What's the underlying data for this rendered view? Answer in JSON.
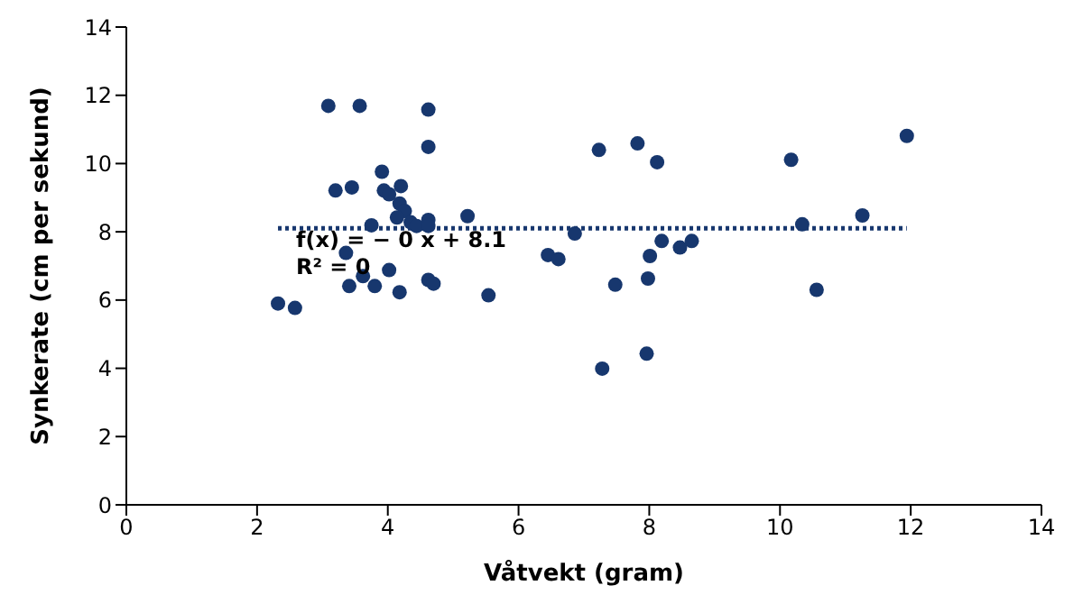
{
  "chart_data": {
    "type": "scatter",
    "xlabel": "Våtvekt (gram)",
    "ylabel": "Synkerate (cm per sekund)",
    "xlim": [
      0,
      14
    ],
    "xticks": [
      0,
      2,
      4,
      6,
      8,
      10,
      12,
      14
    ],
    "ylim": [
      0,
      14
    ],
    "yticks": [
      0,
      2,
      4,
      6,
      8,
      10,
      12,
      14
    ],
    "marker": "circle",
    "annotations": [
      "f(x) = − 0 x + 8.1",
      "R² = 0"
    ],
    "series": [
      {
        "color": "#17376e",
        "x": [
          3.09,
          3.57,
          4.62,
          4.62,
          3.91,
          3.2,
          3.45,
          3.94,
          4.02,
          4.2,
          4.18,
          4.26,
          4.14,
          4.35,
          4.44,
          4.62,
          4.62,
          3.75,
          5.22,
          3.36,
          4.02,
          3.41,
          3.8,
          4.18,
          4.62,
          4.7,
          5.54,
          2.32,
          2.58,
          3.62,
          7.23,
          7.82,
          8.12,
          6.86,
          6.45,
          6.61,
          8.19,
          8.01,
          8.47,
          8.65,
          7.48,
          7.98,
          7.96,
          7.28,
          11.94,
          10.17,
          11.26,
          10.34,
          10.56
        ],
        "values": [
          11.69,
          11.69,
          11.58,
          10.49,
          9.76,
          9.21,
          9.3,
          9.21,
          9.1,
          9.34,
          8.83,
          8.61,
          8.42,
          8.28,
          8.17,
          8.35,
          8.17,
          8.19,
          8.46,
          7.38,
          6.88,
          6.41,
          6.41,
          6.23,
          6.59,
          6.48,
          6.14,
          5.9,
          5.77,
          6.7,
          10.4,
          10.59,
          10.04,
          7.95,
          7.32,
          7.2,
          7.73,
          7.29,
          7.54,
          7.73,
          6.45,
          6.63,
          4.43,
          3.99,
          10.81,
          10.11,
          8.48,
          8.22,
          6.3
        ]
      },
      {
        "type": "line",
        "color": "#17376e",
        "line_style": "dotted",
        "marker": "none",
        "x": [
          2.32,
          11.94
        ],
        "values": [
          8.1,
          8.1
        ]
      }
    ]
  }
}
